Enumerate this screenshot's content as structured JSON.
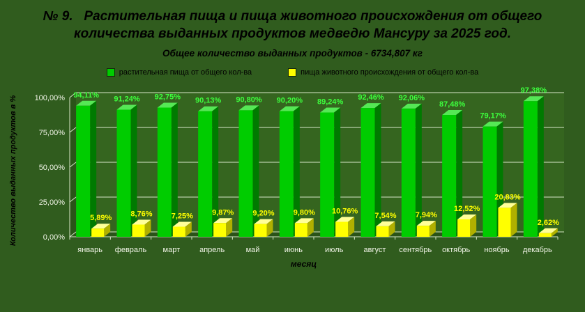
{
  "title": "№ 9.   Растительная пища и пища животного происхождения от общего количества выданных продуктов медведю Мансуру за 2025 год.",
  "subtitle": "Общее количество выданных продуктов - 6734,807 кг",
  "chart_data": {
    "type": "bar",
    "title": "№ 9. Растительная пища и пища животного происхождения от общего количества выданных продуктов медведю Мансуру за 2025 год.",
    "subtitle": "Общее количество выданных продуктов - 6734,807 кг",
    "categories": [
      "январь",
      "февраль",
      "март",
      "апрель",
      "май",
      "июнь",
      "июль",
      "август",
      "сентябрь",
      "октябрь",
      "ноябрь",
      "декабрь"
    ],
    "series": [
      {
        "name": "растительная пища от общего кол-ва",
        "color": "#00cc00",
        "top_color": "#55e855",
        "side_color": "#007a00",
        "label_color": "#3dff3d",
        "values": [
          94.11,
          91.24,
          92.75,
          90.13,
          90.8,
          90.2,
          89.24,
          92.46,
          92.06,
          87.48,
          79.17,
          97.38
        ],
        "labels": [
          "94,11%",
          "91,24%",
          "92,75%",
          "90,13%",
          "90,80%",
          "90,20%",
          "89,24%",
          "92,46%",
          "92,06%",
          "87,48%",
          "79,17%",
          "97,38%"
        ]
      },
      {
        "name": "пища животного происхождения от общего кол-ва",
        "color": "#ffff00",
        "top_color": "#ffff99",
        "side_color": "#b0b000",
        "label_color": "#ffff00",
        "values": [
          5.89,
          8.76,
          7.25,
          9.87,
          9.2,
          9.8,
          10.76,
          7.54,
          7.94,
          12.52,
          20.83,
          2.62
        ],
        "labels": [
          "5,89%",
          "8,76%",
          "7,25%",
          "9,87%",
          "9,20%",
          "9,80%",
          "10,76%",
          "7,54%",
          "7,94%",
          "12,52%",
          "20,83%",
          "2,62%"
        ]
      }
    ],
    "xlabel": "месяц",
    "ylabel": "Количество выданных продуктов в %",
    "ylim": [
      0,
      100
    ],
    "yticks": [
      "0,00%",
      "25,00%",
      "50,00%",
      "75,00%",
      "100,00%"
    ],
    "ytick_values": [
      0,
      25,
      50,
      75,
      100
    ],
    "grid": true,
    "legend_position": "top",
    "colors": {
      "background": "#305c1e",
      "wall": "#35651f",
      "side_wall": "#2b5419",
      "floor": "#2a5318",
      "grid": "#d8e8c8",
      "title_text": "#000000",
      "tick_text": "#f2f5e8"
    }
  }
}
